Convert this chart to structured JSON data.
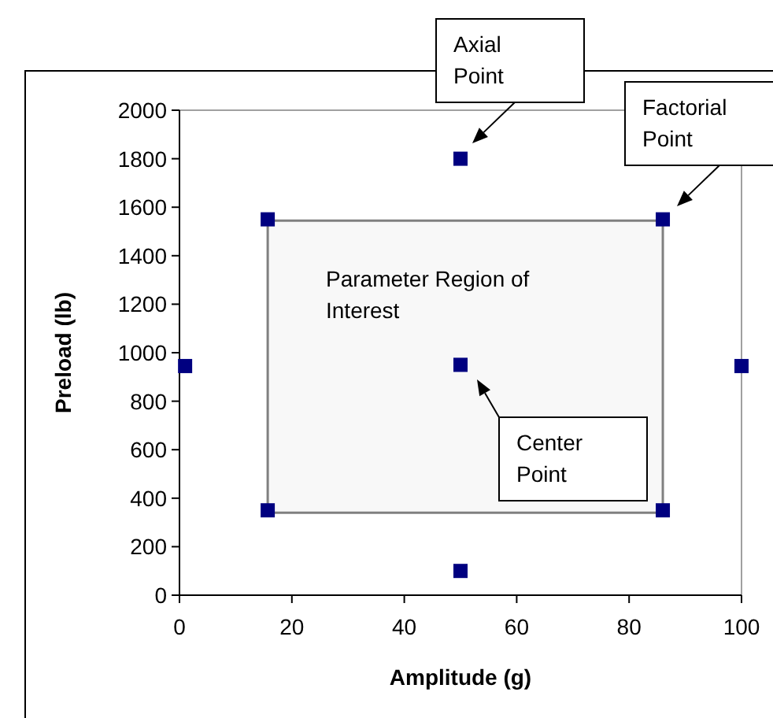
{
  "chart_data": {
    "type": "scatter",
    "xlabel": "Amplitude (g)",
    "ylabel": "Preload (lb)",
    "xlim": [
      0,
      100
    ],
    "ylim": [
      0,
      2000
    ],
    "xticks": [
      0,
      20,
      40,
      60,
      80,
      100
    ],
    "yticks": [
      0,
      200,
      400,
      600,
      800,
      1000,
      1200,
      1400,
      1600,
      1800,
      2000
    ],
    "grid": false,
    "marker": "square",
    "series": [
      {
        "type": "area",
        "color": "#808080",
        "x": [
          15.7,
          86,
          86,
          15.7,
          15.7
        ],
        "values": [
          340,
          340,
          1545,
          1545,
          340
        ],
        "marker": "none"
      },
      {
        "color": "#000080",
        "x": [
          1,
          15.7,
          86,
          15.7,
          86,
          50,
          50,
          50,
          100
        ],
        "values": [
          945,
          1550,
          1550,
          350,
          350,
          950,
          1800,
          100,
          945
        ]
      }
    ],
    "annotations": [
      "Axial Point",
      "Factorial Point",
      "Center Point",
      "Parameter Region of Interest"
    ]
  }
}
